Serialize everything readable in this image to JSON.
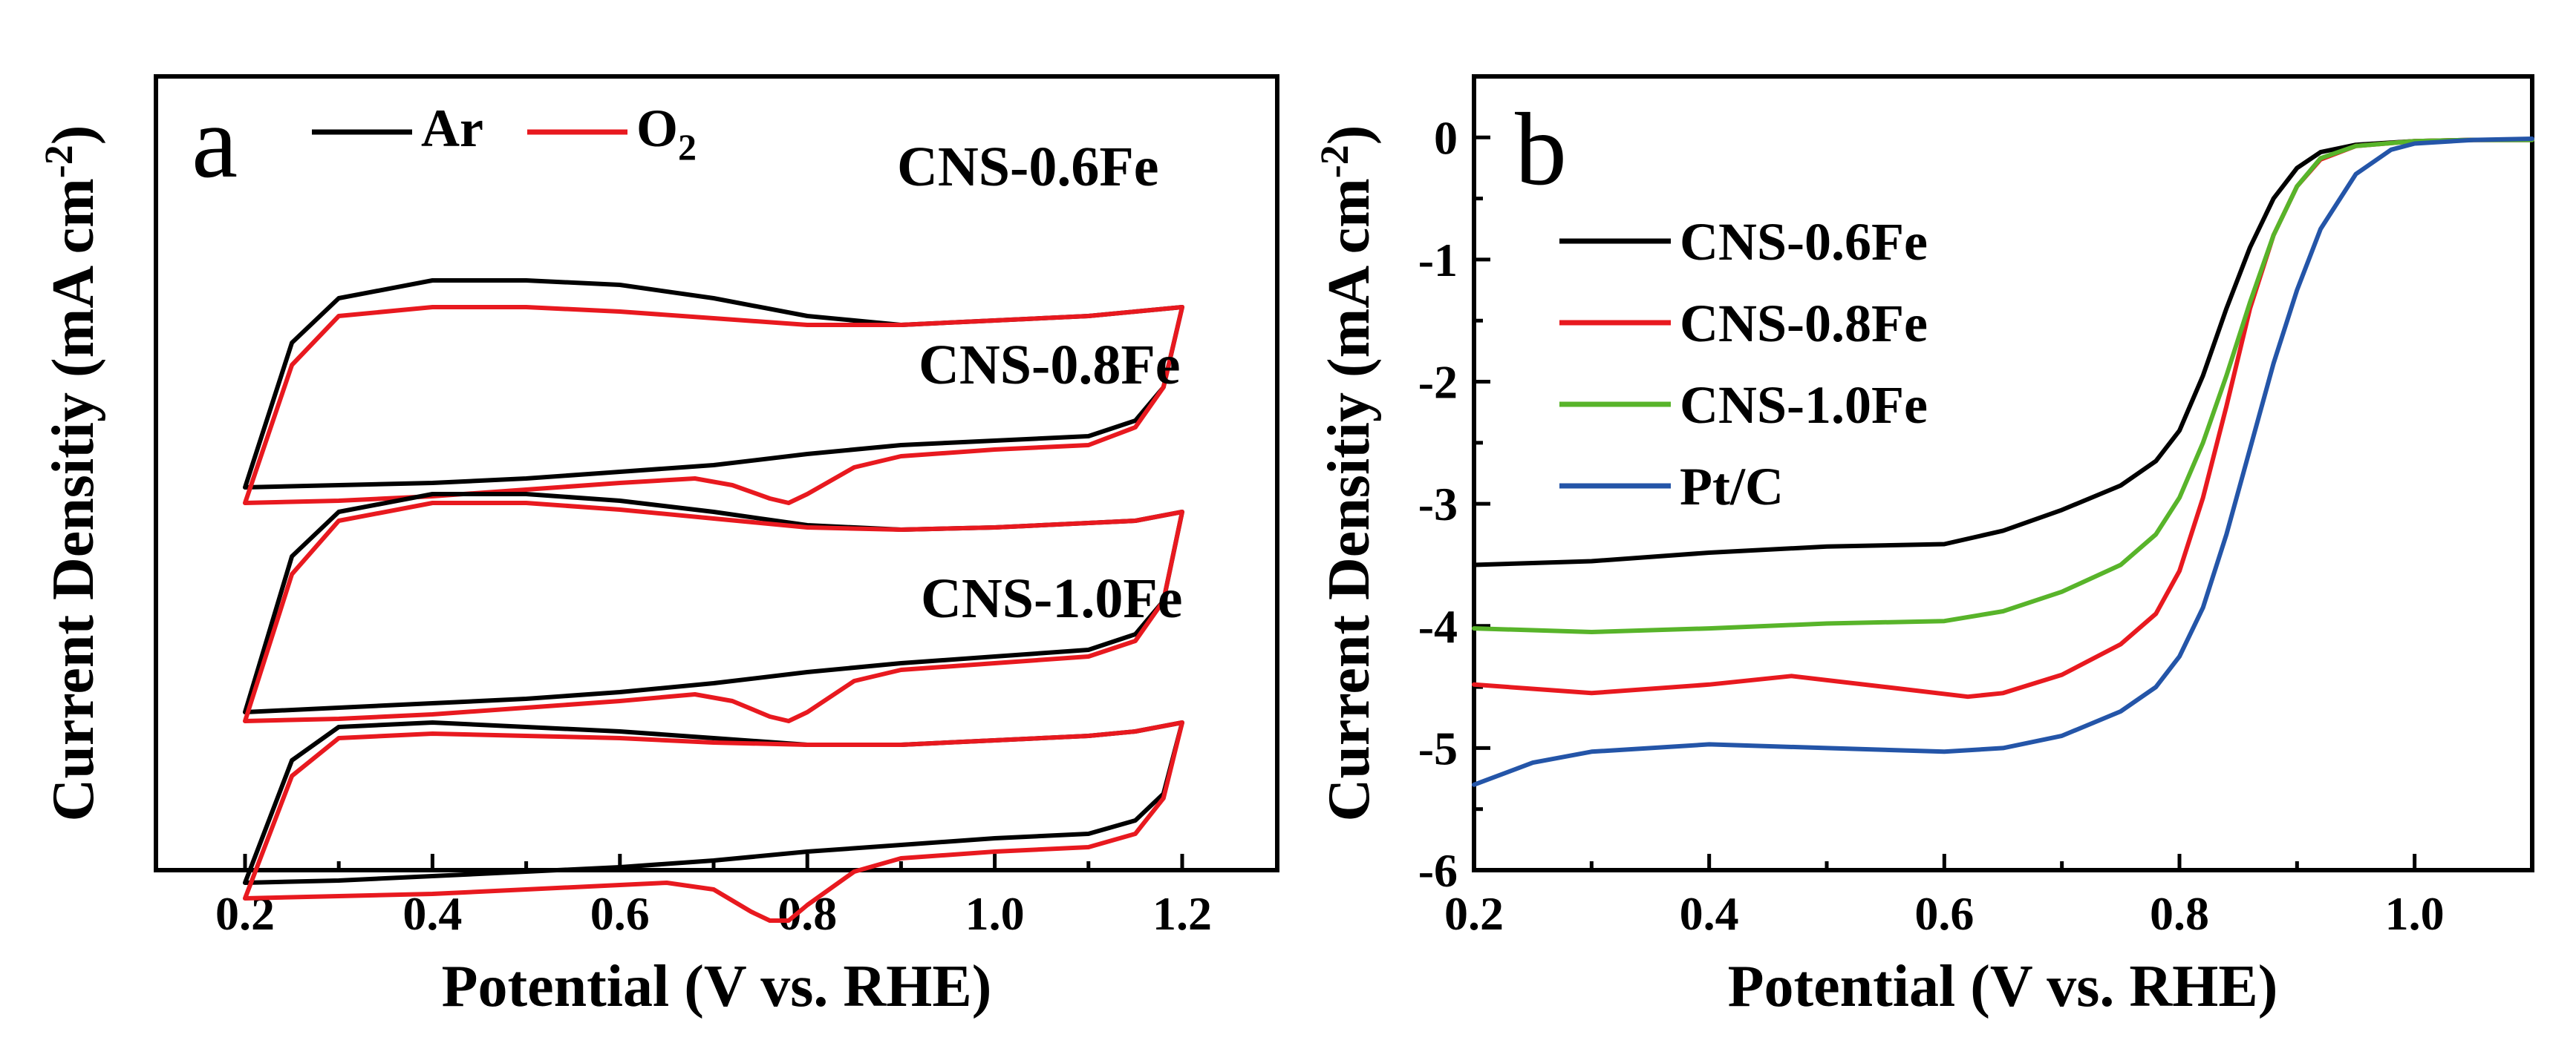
{
  "chart_data": [
    {
      "panel": "a",
      "type": "line",
      "title": "",
      "xlabel": "Potential (V vs. RHE)",
      "ylabel_pre": "Current Densitiy (mA cm",
      "ylabel_sup": "-2",
      "ylabel_post": ")",
      "xlim": [
        0.1,
        1.3
      ],
      "xticks": [
        0.2,
        0.4,
        0.6,
        0.8,
        1.0,
        1.2
      ],
      "xtick_labels": [
        "0.2",
        "0.4",
        "0.6",
        "0.8",
        "1.0",
        "1.2"
      ],
      "legend": {
        "placement": "top-left",
        "entries": [
          {
            "name": "Ar",
            "color": "#000000"
          },
          {
            "name": "O",
            "sub": "2",
            "color": "#e8191f"
          }
        ]
      },
      "samples": [
        {
          "label": "CNS-0.6Fe",
          "offset": 2,
          "ar": {
            "anodic": [
              [
                0.2,
                -0.75
              ],
              [
                0.25,
                -0.1
              ],
              [
                0.3,
                0.1
              ],
              [
                0.4,
                0.18
              ],
              [
                0.5,
                0.18
              ],
              [
                0.6,
                0.16
              ],
              [
                0.7,
                0.1
              ],
              [
                0.8,
                0.02
              ],
              [
                0.9,
                -0.02
              ],
              [
                1.0,
                0.0
              ],
              [
                1.1,
                0.02
              ],
              [
                1.15,
                0.04
              ],
              [
                1.2,
                0.06
              ]
            ],
            "cathodic": [
              [
                1.2,
                0.06
              ],
              [
                1.18,
                -0.3
              ],
              [
                1.15,
                -0.45
              ],
              [
                1.1,
                -0.52
              ],
              [
                1.0,
                -0.54
              ],
              [
                0.9,
                -0.56
              ],
              [
                0.8,
                -0.6
              ],
              [
                0.7,
                -0.65
              ],
              [
                0.6,
                -0.68
              ],
              [
                0.5,
                -0.71
              ],
              [
                0.4,
                -0.73
              ],
              [
                0.3,
                -0.74
              ],
              [
                0.2,
                -0.75
              ]
            ]
          },
          "o2": {
            "anodic": [
              [
                0.2,
                -0.82
              ],
              [
                0.25,
                -0.2
              ],
              [
                0.3,
                0.02
              ],
              [
                0.4,
                0.06
              ],
              [
                0.5,
                0.06
              ],
              [
                0.6,
                0.04
              ],
              [
                0.7,
                0.01
              ],
              [
                0.8,
                -0.02
              ],
              [
                0.9,
                -0.02
              ],
              [
                1.0,
                0.0
              ],
              [
                1.1,
                0.02
              ],
              [
                1.15,
                0.04
              ],
              [
                1.2,
                0.06
              ]
            ],
            "cathodic": [
              [
                1.2,
                0.06
              ],
              [
                1.18,
                -0.3
              ],
              [
                1.15,
                -0.48
              ],
              [
                1.1,
                -0.56
              ],
              [
                1.0,
                -0.58
              ],
              [
                0.9,
                -0.61
              ],
              [
                0.85,
                -0.66
              ],
              [
                0.8,
                -0.78
              ],
              [
                0.78,
                -0.82
              ],
              [
                0.76,
                -0.8
              ],
              [
                0.72,
                -0.74
              ],
              [
                0.68,
                -0.71
              ],
              [
                0.6,
                -0.73
              ],
              [
                0.5,
                -0.76
              ],
              [
                0.4,
                -0.79
              ],
              [
                0.3,
                -0.81
              ],
              [
                0.2,
                -0.82
              ]
            ]
          }
        },
        {
          "label": "CNS-0.8Fe",
          "offset": 1,
          "ar": {
            "anodic": [
              [
                0.2,
                -0.8
              ],
              [
                0.25,
                -0.1
              ],
              [
                0.3,
                0.1
              ],
              [
                0.4,
                0.18
              ],
              [
                0.5,
                0.18
              ],
              [
                0.6,
                0.15
              ],
              [
                0.7,
                0.1
              ],
              [
                0.8,
                0.04
              ],
              [
                0.9,
                0.02
              ],
              [
                1.0,
                0.03
              ],
              [
                1.1,
                0.05
              ],
              [
                1.15,
                0.06
              ],
              [
                1.2,
                0.1
              ]
            ],
            "cathodic": [
              [
                1.2,
                0.1
              ],
              [
                1.18,
                -0.3
              ],
              [
                1.15,
                -0.45
              ],
              [
                1.1,
                -0.52
              ],
              [
                1.0,
                -0.55
              ],
              [
                0.9,
                -0.58
              ],
              [
                0.8,
                -0.62
              ],
              [
                0.7,
                -0.67
              ],
              [
                0.6,
                -0.71
              ],
              [
                0.5,
                -0.74
              ],
              [
                0.4,
                -0.76
              ],
              [
                0.3,
                -0.78
              ],
              [
                0.2,
                -0.8
              ]
            ]
          },
          "o2": {
            "anodic": [
              [
                0.2,
                -0.84
              ],
              [
                0.25,
                -0.18
              ],
              [
                0.3,
                0.06
              ],
              [
                0.4,
                0.14
              ],
              [
                0.5,
                0.14
              ],
              [
                0.6,
                0.11
              ],
              [
                0.7,
                0.07
              ],
              [
                0.8,
                0.03
              ],
              [
                0.9,
                0.02
              ],
              [
                1.0,
                0.03
              ],
              [
                1.1,
                0.05
              ],
              [
                1.15,
                0.06
              ],
              [
                1.2,
                0.1
              ]
            ],
            "cathodic": [
              [
                1.2,
                0.1
              ],
              [
                1.18,
                -0.3
              ],
              [
                1.15,
                -0.48
              ],
              [
                1.1,
                -0.55
              ],
              [
                1.0,
                -0.58
              ],
              [
                0.9,
                -0.61
              ],
              [
                0.85,
                -0.66
              ],
              [
                0.8,
                -0.8
              ],
              [
                0.78,
                -0.84
              ],
              [
                0.76,
                -0.82
              ],
              [
                0.72,
                -0.75
              ],
              [
                0.68,
                -0.72
              ],
              [
                0.6,
                -0.75
              ],
              [
                0.5,
                -0.78
              ],
              [
                0.4,
                -0.81
              ],
              [
                0.3,
                -0.83
              ],
              [
                0.2,
                -0.84
              ]
            ]
          }
        },
        {
          "label": "CNS-1.0Fe",
          "offset": 0,
          "ar": {
            "anodic": [
              [
                0.2,
                -0.6
              ],
              [
                0.25,
                -0.05
              ],
              [
                0.3,
                0.1
              ],
              [
                0.4,
                0.12
              ],
              [
                0.5,
                0.1
              ],
              [
                0.6,
                0.08
              ],
              [
                0.7,
                0.05
              ],
              [
                0.8,
                0.02
              ],
              [
                0.9,
                0.02
              ],
              [
                1.0,
                0.04
              ],
              [
                1.1,
                0.06
              ],
              [
                1.15,
                0.08
              ],
              [
                1.2,
                0.12
              ]
            ],
            "cathodic": [
              [
                1.2,
                0.12
              ],
              [
                1.18,
                -0.2
              ],
              [
                1.15,
                -0.32
              ],
              [
                1.1,
                -0.38
              ],
              [
                1.0,
                -0.4
              ],
              [
                0.9,
                -0.43
              ],
              [
                0.8,
                -0.46
              ],
              [
                0.7,
                -0.5
              ],
              [
                0.6,
                -0.53
              ],
              [
                0.5,
                -0.55
              ],
              [
                0.4,
                -0.57
              ],
              [
                0.3,
                -0.59
              ],
              [
                0.2,
                -0.6
              ]
            ]
          },
          "o2": {
            "anodic": [
              [
                0.2,
                -0.67
              ],
              [
                0.25,
                -0.12
              ],
              [
                0.3,
                0.05
              ],
              [
                0.4,
                0.07
              ],
              [
                0.5,
                0.06
              ],
              [
                0.6,
                0.05
              ],
              [
                0.7,
                0.03
              ],
              [
                0.8,
                0.02
              ],
              [
                0.9,
                0.02
              ],
              [
                1.0,
                0.04
              ],
              [
                1.1,
                0.06
              ],
              [
                1.15,
                0.08
              ],
              [
                1.2,
                0.12
              ]
            ],
            "cathodic": [
              [
                1.2,
                0.12
              ],
              [
                1.18,
                -0.22
              ],
              [
                1.15,
                -0.38
              ],
              [
                1.1,
                -0.44
              ],
              [
                1.0,
                -0.46
              ],
              [
                0.9,
                -0.49
              ],
              [
                0.85,
                -0.55
              ],
              [
                0.8,
                -0.7
              ],
              [
                0.78,
                -0.77
              ],
              [
                0.76,
                -0.77
              ],
              [
                0.74,
                -0.73
              ],
              [
                0.7,
                -0.63
              ],
              [
                0.65,
                -0.6
              ],
              [
                0.6,
                -0.61
              ],
              [
                0.5,
                -0.63
              ],
              [
                0.4,
                -0.65
              ],
              [
                0.3,
                -0.66
              ],
              [
                0.2,
                -0.67
              ]
            ]
          }
        }
      ]
    },
    {
      "panel": "b",
      "type": "line",
      "title": "",
      "xlabel": "Potential (V vs. RHE)",
      "ylabel_pre": "Current Densitiy (mA cm",
      "ylabel_sup": "-2",
      "ylabel_post": ")",
      "xlim": [
        0.2,
        1.1
      ],
      "ylim": [
        -6,
        0.5
      ],
      "xticks": [
        0.2,
        0.4,
        0.6,
        0.8,
        1.0
      ],
      "xtick_labels": [
        "0.2",
        "0.4",
        "0.6",
        "0.8",
        "1.0"
      ],
      "yticks": [
        0,
        -1,
        -2,
        -3,
        -4,
        -5,
        -6
      ],
      "ytick_labels": [
        "0",
        "-1",
        "-2",
        "-3",
        "-4",
        "-5",
        "-6"
      ],
      "legend": {
        "placement": "top-left"
      },
      "series": [
        {
          "name": "CNS-0.6Fe",
          "color": "#000000",
          "x": [
            0.2,
            0.3,
            0.4,
            0.5,
            0.6,
            0.65,
            0.7,
            0.75,
            0.78,
            0.8,
            0.82,
            0.84,
            0.86,
            0.88,
            0.9,
            0.92,
            0.95,
            1.0,
            1.05,
            1.1
          ],
          "y": [
            -3.5,
            -3.47,
            -3.4,
            -3.35,
            -3.33,
            -3.22,
            -3.05,
            -2.85,
            -2.65,
            -2.4,
            -1.95,
            -1.4,
            -0.9,
            -0.5,
            -0.25,
            -0.12,
            -0.06,
            -0.03,
            -0.02,
            -0.02
          ]
        },
        {
          "name": "CNS-0.8Fe",
          "color": "#e8191f",
          "x": [
            0.2,
            0.3,
            0.4,
            0.47,
            0.55,
            0.62,
            0.65,
            0.7,
            0.75,
            0.78,
            0.8,
            0.82,
            0.84,
            0.86,
            0.88,
            0.9,
            0.92,
            0.95,
            1.0,
            1.05,
            1.1
          ],
          "y": [
            -4.48,
            -4.55,
            -4.48,
            -4.41,
            -4.5,
            -4.58,
            -4.55,
            -4.4,
            -4.15,
            -3.9,
            -3.55,
            -2.95,
            -2.2,
            -1.4,
            -0.8,
            -0.4,
            -0.18,
            -0.07,
            -0.03,
            -0.02,
            -0.02
          ]
        },
        {
          "name": "CNS-1.0Fe",
          "color": "#58b42a",
          "x": [
            0.2,
            0.3,
            0.4,
            0.5,
            0.6,
            0.65,
            0.7,
            0.75,
            0.78,
            0.8,
            0.82,
            0.84,
            0.86,
            0.88,
            0.9,
            0.92,
            0.95,
            1.0,
            1.05,
            1.1
          ],
          "y": [
            -4.02,
            -4.05,
            -4.02,
            -3.98,
            -3.96,
            -3.88,
            -3.72,
            -3.5,
            -3.25,
            -2.95,
            -2.5,
            -1.95,
            -1.35,
            -0.8,
            -0.4,
            -0.17,
            -0.07,
            -0.03,
            -0.02,
            -0.02
          ]
        },
        {
          "name": "Pt/C",
          "color": "#2455a8",
          "x": [
            0.2,
            0.25,
            0.3,
            0.4,
            0.5,
            0.6,
            0.65,
            0.7,
            0.75,
            0.78,
            0.8,
            0.82,
            0.84,
            0.86,
            0.88,
            0.9,
            0.92,
            0.95,
            0.98,
            1.0,
            1.05,
            1.1
          ],
          "y": [
            -5.3,
            -5.12,
            -5.03,
            -4.97,
            -5.0,
            -5.03,
            -5.0,
            -4.9,
            -4.7,
            -4.5,
            -4.25,
            -3.85,
            -3.25,
            -2.55,
            -1.85,
            -1.25,
            -0.75,
            -0.3,
            -0.1,
            -0.05,
            -0.02,
            -0.01
          ]
        }
      ]
    }
  ]
}
